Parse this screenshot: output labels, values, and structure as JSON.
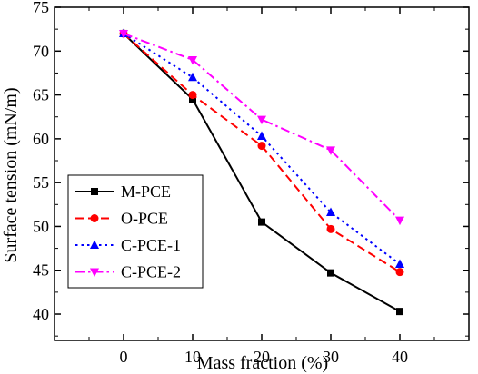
{
  "chart_data": {
    "type": "line",
    "title": "",
    "xlabel": "Mass fraction (%)",
    "ylabel": "Surface tension (mN/m)",
    "x": [
      0,
      10,
      20,
      30,
      40
    ],
    "xlim": [
      -10,
      50
    ],
    "ylim": [
      37,
      75
    ],
    "xticks": [
      "0",
      "10",
      "20",
      "30",
      "40"
    ],
    "yticks": [
      "40",
      "45",
      "50",
      "55",
      "60",
      "65",
      "70",
      "75"
    ],
    "legend_position": "bottom-left",
    "grid": false,
    "series": [
      {
        "name": "M-PCE",
        "color": "#000000",
        "marker": "square",
        "dash": "solid",
        "values": [
          72.0,
          64.5,
          50.5,
          44.7,
          40.3
        ]
      },
      {
        "name": "O-PCE",
        "color": "#ff0000",
        "marker": "circle",
        "dash": "dashed",
        "values": [
          72.0,
          65.0,
          59.2,
          49.7,
          44.8
        ]
      },
      {
        "name": "C-PCE-1",
        "color": "#0000ff",
        "marker": "triangle-up",
        "dash": "dotted",
        "values": [
          72.0,
          67.0,
          60.3,
          51.6,
          45.7
        ]
      },
      {
        "name": "C-PCE-2",
        "color": "#ff00ff",
        "marker": "triangle-down",
        "dash": "dash-dot",
        "values": [
          72.0,
          69.0,
          62.2,
          58.7,
          50.7
        ]
      }
    ]
  }
}
